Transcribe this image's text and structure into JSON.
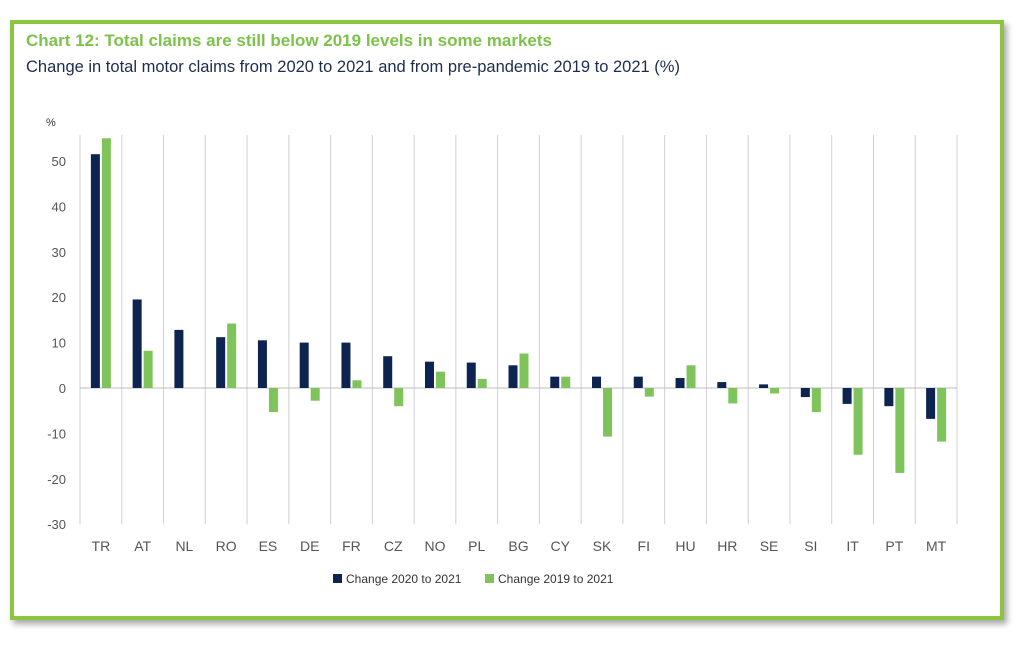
{
  "colors": {
    "frame": "#8cc63f",
    "series1": "#0d2451",
    "series2": "#7ec45a",
    "grid": "#d0d0d0",
    "zero": "#bcbcbc"
  },
  "title": "Chart 12: Total claims are still below 2019 levels in some markets",
  "subtitle": "Change in total motor claims from 2020 to 2021 and from pre-pandemic 2019 to 2021 (%)",
  "chart_data": {
    "type": "bar",
    "title": "Chart 12: Total claims are still below 2019 levels in some markets",
    "subtitle": "Change in total motor claims from 2020 to 2021 and from pre-pandemic 2019 to 2021 (%)",
    "unit_label": "%",
    "xlabel": "",
    "ylabel": "%",
    "ylim": [
      -30,
      55
    ],
    "yticks": [
      50,
      40,
      30,
      20,
      10,
      0,
      -10,
      -20,
      -30
    ],
    "grid": "vertical category separators",
    "legend_position": "bottom-center",
    "categories": [
      "TR",
      "AT",
      "NL",
      "RO",
      "ES",
      "DE",
      "FR",
      "CZ",
      "NO",
      "PL",
      "BG",
      "CY",
      "SK",
      "FI",
      "HU",
      "HR",
      "SE",
      "SI",
      "IT",
      "PT",
      "MT"
    ],
    "series": [
      {
        "name": "Change 2020 to 2021",
        "color": "#0d2451",
        "values": [
          51.5,
          19.5,
          12.8,
          11.2,
          10.5,
          10.0,
          10.0,
          7.0,
          5.8,
          5.6,
          5.0,
          2.5,
          2.5,
          2.5,
          2.2,
          1.3,
          0.8,
          -2.0,
          -3.5,
          -4.0,
          -6.8
        ]
      },
      {
        "name": "Change 2019 to 2021",
        "color": "#7ec45a",
        "values": [
          55.0,
          8.2,
          0.0,
          14.2,
          -5.3,
          -2.8,
          1.7,
          -4.0,
          3.6,
          2.0,
          7.6,
          2.5,
          -10.7,
          -1.9,
          5.0,
          -3.4,
          -1.2,
          -5.3,
          -14.7,
          -18.7,
          -11.8
        ]
      }
    ]
  }
}
